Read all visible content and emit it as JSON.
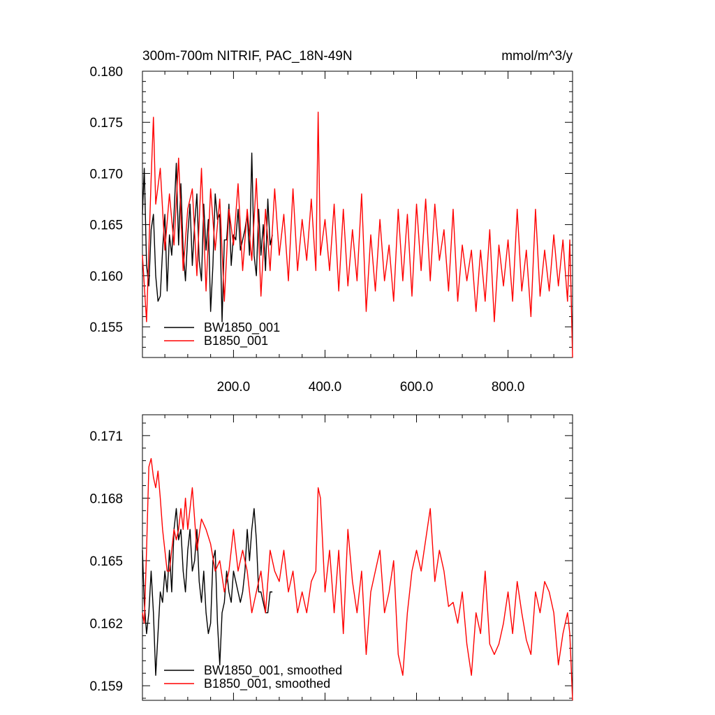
{
  "chart_data": [
    {
      "type": "line",
      "title": "300m-700m NITRIF, PAC_18N-49N",
      "units": "mmol/m^3/y",
      "xlim": [
        1,
        941
      ],
      "ylim": [
        0.152,
        0.18
      ],
      "x_ticks": [
        200,
        400,
        600,
        800
      ],
      "x_tick_labels": [
        "200.0",
        "400.0",
        "600.0",
        "800.0"
      ],
      "y_ticks": [
        0.155,
        0.16,
        0.165,
        0.17,
        0.175,
        0.18
      ],
      "y_tick_labels": [
        "0.155",
        "0.160",
        "0.165",
        "0.170",
        "0.175",
        "0.180"
      ],
      "legend_position": "bottom-left",
      "series": [
        {
          "name": "BW1850_001",
          "color": "#000000",
          "x": [
            1,
            5,
            10,
            15,
            20,
            25,
            30,
            35,
            40,
            45,
            50,
            55,
            60,
            65,
            70,
            75,
            80,
            85,
            90,
            95,
            100,
            105,
            110,
            115,
            120,
            125,
            130,
            135,
            140,
            145,
            150,
            155,
            160,
            165,
            170,
            175,
            180,
            185,
            190,
            195,
            200,
            205,
            210,
            215,
            220,
            225,
            230,
            235,
            240,
            245,
            250,
            255,
            260,
            265,
            270,
            275,
            280,
            285
          ],
          "values": [
            0.166,
            0.1705,
            0.161,
            0.159,
            0.1645,
            0.166,
            0.16,
            0.1575,
            0.158,
            0.1625,
            0.166,
            0.1585,
            0.164,
            0.162,
            0.166,
            0.171,
            0.163,
            0.169,
            0.1625,
            0.1595,
            0.164,
            0.167,
            0.161,
            0.165,
            0.168,
            0.1615,
            0.1595,
            0.167,
            0.1625,
            0.1655,
            0.1565,
            0.161,
            0.168,
            0.1655,
            0.166,
            0.1555,
            0.1635,
            0.1635,
            0.167,
            0.161,
            0.164,
            0.1635,
            0.1665,
            0.1625,
            0.1635,
            0.1645,
            0.166,
            0.162,
            0.172,
            0.162,
            0.16,
            0.1665,
            0.162,
            0.165,
            0.1605,
            0.1675,
            0.163,
            0.164
          ]
        },
        {
          "name": "B1850_001",
          "color": "#ff0000",
          "x": [
            1,
            10,
            20,
            25,
            30,
            40,
            50,
            60,
            70,
            80,
            90,
            100,
            110,
            120,
            130,
            140,
            150,
            160,
            170,
            180,
            190,
            200,
            210,
            220,
            230,
            240,
            250,
            260,
            270,
            280,
            290,
            300,
            310,
            320,
            330,
            340,
            350,
            360,
            370,
            380,
            385,
            390,
            400,
            410,
            420,
            430,
            440,
            450,
            460,
            470,
            480,
            490,
            500,
            510,
            520,
            530,
            540,
            550,
            560,
            570,
            580,
            590,
            600,
            610,
            620,
            630,
            640,
            650,
            660,
            670,
            680,
            690,
            700,
            710,
            720,
            730,
            740,
            750,
            760,
            770,
            780,
            790,
            800,
            810,
            820,
            830,
            840,
            850,
            860,
            870,
            880,
            890,
            900,
            910,
            920,
            930,
            935,
            941
          ],
          "values": [
            0.162,
            0.1555,
            0.1695,
            0.1755,
            0.167,
            0.1705,
            0.1625,
            0.168,
            0.163,
            0.1715,
            0.1605,
            0.1665,
            0.1685,
            0.16,
            0.1705,
            0.1585,
            0.1685,
            0.1625,
            0.1675,
            0.1575,
            0.1665,
            0.163,
            0.169,
            0.1605,
            0.1665,
            0.1615,
            0.1695,
            0.158,
            0.1665,
            0.1605,
            0.1685,
            0.162,
            0.166,
            0.1595,
            0.1685,
            0.1605,
            0.1655,
            0.1615,
            0.1675,
            0.1605,
            0.176,
            0.162,
            0.1655,
            0.1605,
            0.167,
            0.1585,
            0.1665,
            0.159,
            0.1645,
            0.1595,
            0.168,
            0.1565,
            0.164,
            0.1585,
            0.1655,
            0.1595,
            0.163,
            0.1575,
            0.1665,
            0.1595,
            0.166,
            0.158,
            0.167,
            0.1605,
            0.1675,
            0.1595,
            0.167,
            0.1615,
            0.1645,
            0.1585,
            0.1665,
            0.1575,
            0.163,
            0.1595,
            0.1625,
            0.1565,
            0.1625,
            0.1575,
            0.1645,
            0.1555,
            0.163,
            0.159,
            0.1635,
            0.1575,
            0.1665,
            0.1585,
            0.1625,
            0.156,
            0.1665,
            0.158,
            0.1625,
            0.1585,
            0.164,
            0.159,
            0.1635,
            0.1575,
            0.1635,
            0.152
          ]
        }
      ]
    },
    {
      "type": "line",
      "xlim": [
        1,
        941
      ],
      "ylim": [
        0.1583,
        0.172
      ],
      "y_ticks": [
        0.159,
        0.162,
        0.165,
        0.168,
        0.171
      ],
      "y_tick_labels": [
        "0.159",
        "0.162",
        "0.165",
        "0.168",
        "0.171"
      ],
      "legend_position": "bottom-left",
      "series": [
        {
          "name": "BW1850_001, smoothed",
          "color": "#000000",
          "x": [
            1,
            5,
            10,
            15,
            20,
            25,
            30,
            35,
            40,
            45,
            50,
            55,
            60,
            65,
            70,
            75,
            80,
            85,
            90,
            95,
            100,
            105,
            110,
            115,
            120,
            125,
            130,
            135,
            140,
            145,
            150,
            155,
            160,
            165,
            170,
            175,
            180,
            185,
            190,
            195,
            200,
            205,
            210,
            215,
            220,
            225,
            230,
            235,
            240,
            245,
            250,
            255,
            260,
            265,
            270,
            275,
            280,
            285
          ],
          "values": [
            0.1655,
            0.163,
            0.1615,
            0.1625,
            0.1645,
            0.1625,
            0.1595,
            0.1615,
            0.1635,
            0.163,
            0.1645,
            0.1635,
            0.1655,
            0.1635,
            0.1665,
            0.1675,
            0.166,
            0.1665,
            0.1645,
            0.1635,
            0.1655,
            0.1665,
            0.1645,
            0.165,
            0.1665,
            0.164,
            0.163,
            0.1645,
            0.1625,
            0.1615,
            0.162,
            0.165,
            0.1655,
            0.162,
            0.16,
            0.1625,
            0.163,
            0.1645,
            0.1635,
            0.163,
            0.1645,
            0.164,
            0.1635,
            0.163,
            0.1635,
            0.1645,
            0.1665,
            0.165,
            0.1665,
            0.1675,
            0.166,
            0.1635,
            0.1635,
            0.163,
            0.1625,
            0.1625,
            0.1635,
            0.1635
          ]
        },
        {
          "name": "B1850_001, smoothed",
          "color": "#ff0000",
          "x": [
            1,
            5,
            10,
            15,
            20,
            25,
            30,
            35,
            40,
            45,
            50,
            55,
            60,
            65,
            70,
            75,
            80,
            85,
            90,
            95,
            100,
            110,
            120,
            130,
            140,
            150,
            160,
            170,
            180,
            190,
            200,
            210,
            220,
            230,
            240,
            250,
            260,
            270,
            280,
            290,
            300,
            310,
            320,
            330,
            340,
            350,
            360,
            370,
            380,
            385,
            390,
            400,
            410,
            420,
            430,
            440,
            450,
            460,
            470,
            480,
            490,
            500,
            510,
            520,
            530,
            540,
            550,
            560,
            570,
            580,
            590,
            600,
            610,
            620,
            630,
            640,
            650,
            660,
            670,
            680,
            690,
            700,
            710,
            720,
            730,
            740,
            750,
            760,
            770,
            780,
            790,
            800,
            810,
            820,
            830,
            840,
            850,
            860,
            870,
            880,
            890,
            900,
            910,
            920,
            930,
            935,
            941
          ],
          "values": [
            0.1625,
            0.162,
            0.1655,
            0.1695,
            0.1699,
            0.169,
            0.1685,
            0.1693,
            0.168,
            0.1665,
            0.1655,
            0.1645,
            0.1645,
            0.1655,
            0.1665,
            0.166,
            0.1665,
            0.1675,
            0.1665,
            0.168,
            0.1665,
            0.1685,
            0.1655,
            0.167,
            0.1665,
            0.1658,
            0.1645,
            0.165,
            0.1635,
            0.1645,
            0.1665,
            0.1645,
            0.1655,
            0.1645,
            0.1625,
            0.1635,
            0.1645,
            0.1625,
            0.1655,
            0.1645,
            0.164,
            0.1655,
            0.1635,
            0.1645,
            0.1625,
            0.1635,
            0.1625,
            0.164,
            0.1645,
            0.1685,
            0.168,
            0.1635,
            0.1655,
            0.1625,
            0.1655,
            0.1615,
            0.1665,
            0.164,
            0.1625,
            0.1645,
            0.1605,
            0.1635,
            0.1645,
            0.1655,
            0.1625,
            0.1635,
            0.165,
            0.1605,
            0.1595,
            0.1625,
            0.1645,
            0.1655,
            0.1645,
            0.166,
            0.1675,
            0.164,
            0.1655,
            0.1645,
            0.1628,
            0.163,
            0.162,
            0.1635,
            0.161,
            0.1595,
            0.1625,
            0.1615,
            0.1645,
            0.161,
            0.1605,
            0.161,
            0.162,
            0.1635,
            0.1615,
            0.164,
            0.1625,
            0.1612,
            0.1605,
            0.1635,
            0.1625,
            0.164,
            0.1635,
            0.1625,
            0.16,
            0.1615,
            0.1625,
            0.1615,
            0.1583
          ]
        }
      ]
    }
  ]
}
